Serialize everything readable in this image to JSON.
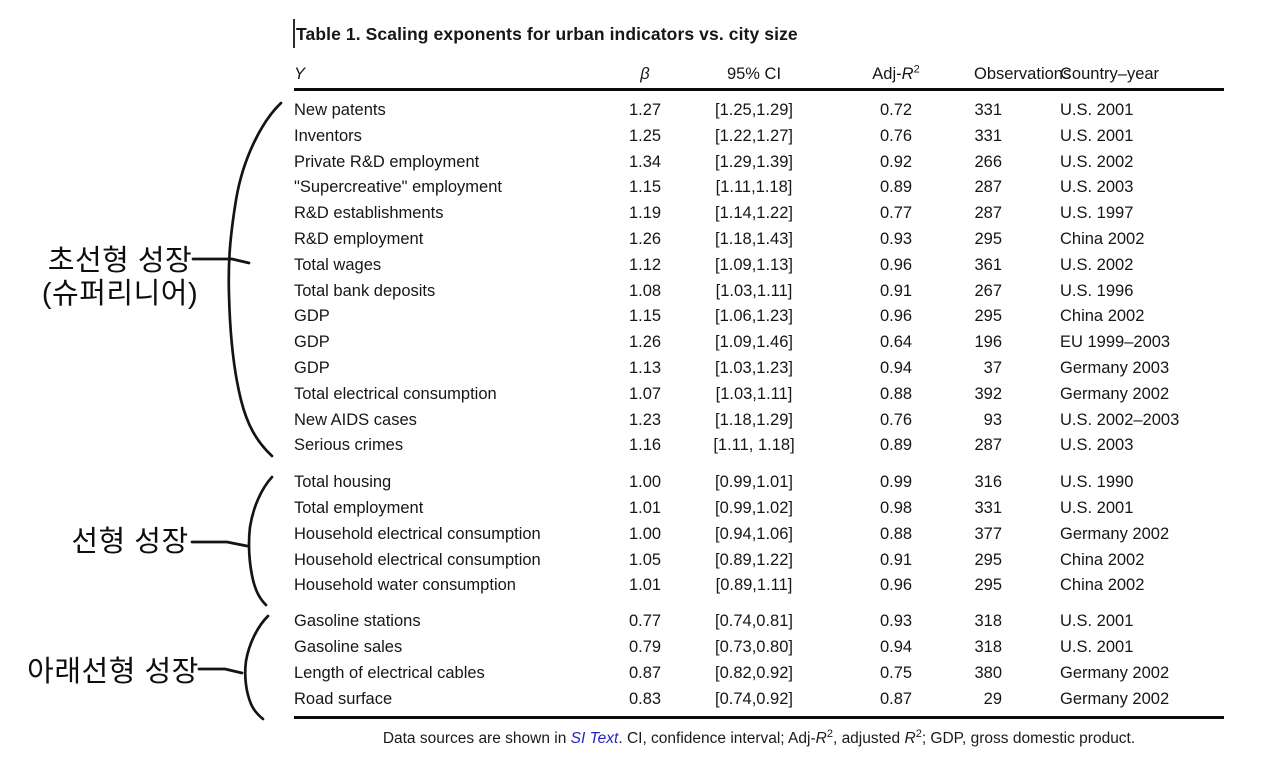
{
  "title": "Table 1. Scaling exponents for urban indicators vs. city size",
  "header": {
    "y": "Y",
    "beta": "β",
    "ci": "95% CI",
    "adj_prefix": "Adj-",
    "adj_r": "R",
    "adj_sup": "2",
    "observations": "Observations",
    "country_year": "Country–year"
  },
  "annotations": {
    "superlinear": {
      "line1": "초선형 성장",
      "line2": "(슈퍼리니어)"
    },
    "linear": {
      "label": "선형 성장"
    },
    "sublinear": {
      "label": "아래선형 성장"
    }
  },
  "sections": [
    {
      "name": "superlinear",
      "rows": [
        [
          "New patents",
          "1.27",
          "[1.25,1.29]",
          "0.72",
          "331",
          "U.S. 2001"
        ],
        [
          "Inventors",
          "1.25",
          "[1.22,1.27]",
          "0.76",
          "331",
          "U.S. 2001"
        ],
        [
          "Private R&D employment",
          "1.34",
          "[1.29,1.39]",
          "0.92",
          "266",
          "U.S. 2002"
        ],
        [
          "\"Supercreative\" employment",
          "1.15",
          "[1.11,1.18]",
          "0.89",
          "287",
          "U.S. 2003"
        ],
        [
          "R&D establishments",
          "1.19",
          "[1.14,1.22]",
          "0.77",
          "287",
          "U.S. 1997"
        ],
        [
          "R&D employment",
          "1.26",
          "[1.18,1.43]",
          "0.93",
          "295",
          "China 2002"
        ],
        [
          "Total wages",
          "1.12",
          "[1.09,1.13]",
          "0.96",
          "361",
          "U.S. 2002"
        ],
        [
          "Total bank deposits",
          "1.08",
          "[1.03,1.11]",
          "0.91",
          "267",
          "U.S. 1996"
        ],
        [
          "GDP",
          "1.15",
          "[1.06,1.23]",
          "0.96",
          "295",
          "China 2002"
        ],
        [
          "GDP",
          "1.26",
          "[1.09,1.46]",
          "0.64",
          "196",
          "EU 1999–2003"
        ],
        [
          "GDP",
          "1.13",
          "[1.03,1.23]",
          "0.94",
          "37",
          "Germany 2003"
        ],
        [
          "Total electrical consumption",
          "1.07",
          "[1.03,1.11]",
          "0.88",
          "392",
          "Germany 2002"
        ],
        [
          "New AIDS cases",
          "1.23",
          "[1.18,1.29]",
          "0.76",
          "93",
          "U.S. 2002–2003"
        ],
        [
          "Serious crimes",
          "1.16",
          "[1.11, 1.18]",
          "0.89",
          "287",
          "U.S. 2003"
        ]
      ]
    },
    {
      "name": "linear",
      "rows": [
        [
          "Total housing",
          "1.00",
          "[0.99,1.01]",
          "0.99",
          "316",
          "U.S. 1990"
        ],
        [
          "Total employment",
          "1.01",
          "[0.99,1.02]",
          "0.98",
          "331",
          "U.S. 2001"
        ],
        [
          "Household electrical consumption",
          "1.00",
          "[0.94,1.06]",
          "0.88",
          "377",
          "Germany 2002"
        ],
        [
          "Household electrical consumption",
          "1.05",
          "[0.89,1.22]",
          "0.91",
          "295",
          "China 2002"
        ],
        [
          "Household water consumption",
          "1.01",
          "[0.89,1.11]",
          "0.96",
          "295",
          "China 2002"
        ]
      ]
    },
    {
      "name": "sublinear",
      "rows": [
        [
          "Gasoline stations",
          "0.77",
          "[0.74,0.81]",
          "0.93",
          "318",
          "U.S. 2001"
        ],
        [
          "Gasoline sales",
          "0.79",
          "[0.73,0.80]",
          "0.94",
          "318",
          "U.S. 2001"
        ],
        [
          "Length of electrical cables",
          "0.87",
          "[0.82,0.92]",
          "0.75",
          "380",
          "Germany 2002"
        ],
        [
          "Road surface",
          "0.83",
          "[0.74,0.92]",
          "0.87",
          "29",
          "Germany 2002"
        ]
      ]
    }
  ],
  "footer": {
    "runs": [
      {
        "text": "Data sources are shown in "
      },
      {
        "text": "SI Text",
        "style": "si-link"
      },
      {
        "text": ". CI, confidence interval; Adj-"
      },
      {
        "text": "R",
        "style": "italic"
      },
      {
        "text": "2",
        "style": "sup"
      },
      {
        "text": ", adjusted "
      },
      {
        "text": "R",
        "style": "italic"
      },
      {
        "text": "2",
        "style": "sup"
      },
      {
        "text": "; GDP, gross domestic product."
      }
    ]
  }
}
